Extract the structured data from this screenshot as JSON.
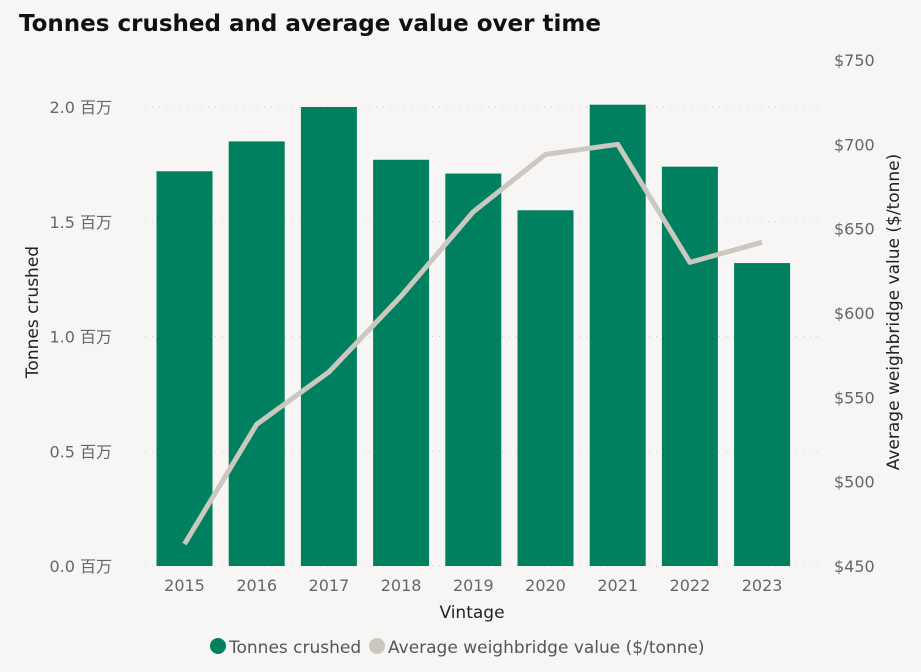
{
  "chart_data": {
    "type": "bar",
    "title": "Tonnes crushed and average value over time",
    "xlabel": "Vintage",
    "ylabel": "Tonnes crushed",
    "y2label": "Average weighbridge value ($/tonne)",
    "categories": [
      "2015",
      "2016",
      "2017",
      "2018",
      "2019",
      "2020",
      "2021",
      "2022",
      "2023"
    ],
    "ylim": [
      0,
      2.0
    ],
    "y_ticks": [
      0,
      0.5,
      1.0,
      1.5,
      2.0
    ],
    "y_tick_labels": [
      "0.0 百万",
      "0.5 百万",
      "1.0 百万",
      "1.5 百万",
      "2.0 百万"
    ],
    "y2lim": [
      450,
      750
    ],
    "y2_ticks": [
      450,
      500,
      550,
      600,
      650,
      700,
      750
    ],
    "y2_tick_labels": [
      "$450",
      "$500",
      "$550",
      "$600",
      "$650",
      "$700",
      "$750"
    ],
    "grid": true,
    "legend_position": "bottom",
    "series": [
      {
        "name": "Tonnes crushed",
        "type": "bar",
        "axis": "left",
        "unit": "百万 tonnes",
        "color": "#00805f",
        "values": [
          1.72,
          1.85,
          2.0,
          1.77,
          1.71,
          1.55,
          2.01,
          1.74,
          1.32
        ]
      },
      {
        "name": "Average weighbridge value ($/tonne)",
        "type": "line",
        "axis": "right",
        "color": "#cbc8c0",
        "values": [
          463,
          534,
          565,
          610,
          660,
          694,
          700,
          630,
          642
        ]
      }
    ]
  }
}
